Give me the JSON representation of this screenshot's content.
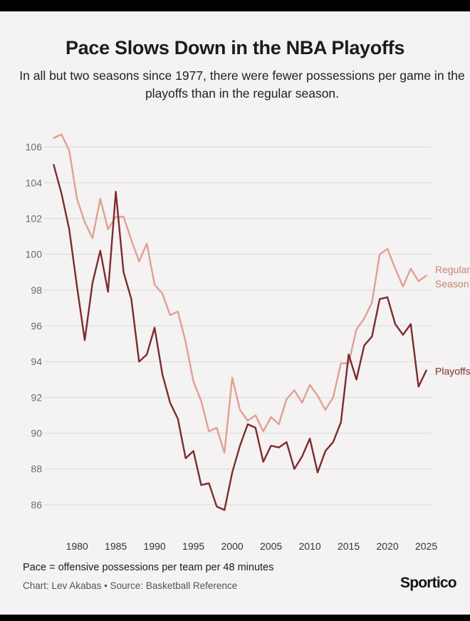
{
  "title": "Pace Slows Down in the NBA Playoffs",
  "subtitle": "In all but two seasons since 1977, there were fewer possessions per game in the playoffs than in the regular season.",
  "note": "Pace = offensive possessions per team per 48 minutes",
  "credit": "Chart: Lev Akabas • Source: Basketball Reference",
  "brand": "Sportico",
  "colors": {
    "regular": "#e0a093",
    "playoffs": "#7d2b2e",
    "regular_label": "#c98376",
    "grid": "#dcd9d9"
  },
  "chart_data": {
    "type": "line",
    "title": "Pace Slows Down in the NBA Playoffs",
    "xlabel": "",
    "ylabel": "",
    "x": [
      1977,
      1978,
      1979,
      1980,
      1981,
      1982,
      1983,
      1984,
      1985,
      1986,
      1987,
      1988,
      1989,
      1990,
      1991,
      1992,
      1993,
      1994,
      1995,
      1996,
      1997,
      1998,
      1999,
      2000,
      2001,
      2002,
      2003,
      2004,
      2005,
      2006,
      2007,
      2008,
      2009,
      2010,
      2011,
      2012,
      2013,
      2014,
      2015,
      2016,
      2017,
      2018,
      2019,
      2020,
      2021,
      2022,
      2023,
      2024,
      2025
    ],
    "xticks": [
      1980,
      1985,
      1990,
      1995,
      2000,
      2005,
      2010,
      2015,
      2020,
      2025
    ],
    "yticks": [
      86,
      88,
      90,
      92,
      94,
      96,
      98,
      100,
      102,
      104,
      106
    ],
    "xlim": [
      1976.5,
      2025.5
    ],
    "ylim": [
      85,
      107.2
    ],
    "grid": true,
    "series": [
      {
        "name": "Regular Season",
        "label_lines": [
          "Regular",
          "Season"
        ],
        "values": [
          106.5,
          106.7,
          105.8,
          103.1,
          101.8,
          100.9,
          103.1,
          101.4,
          102.1,
          102.1,
          100.8,
          99.6,
          100.6,
          98.3,
          97.8,
          96.6,
          96.8,
          95.1,
          92.9,
          91.8,
          90.1,
          90.3,
          88.9,
          93.1,
          91.3,
          90.7,
          91.0,
          90.1,
          90.9,
          90.5,
          91.9,
          92.4,
          91.7,
          92.7,
          92.1,
          91.3,
          92.0,
          93.9,
          93.9,
          95.8,
          96.4,
          97.3,
          100.0,
          100.3,
          99.2,
          98.2,
          99.2,
          98.5,
          98.8
        ]
      },
      {
        "name": "Playoffs",
        "label_lines": [
          "Playoffs"
        ],
        "values": [
          105.0,
          103.4,
          101.4,
          98.2,
          95.2,
          98.4,
          100.2,
          97.9,
          103.5,
          99.0,
          97.5,
          94.0,
          94.4,
          95.9,
          93.3,
          91.7,
          90.8,
          88.6,
          89.0,
          87.1,
          87.2,
          85.9,
          85.7,
          87.8,
          89.3,
          90.5,
          90.3,
          88.4,
          89.3,
          89.2,
          89.5,
          88.0,
          88.7,
          89.7,
          87.8,
          89.0,
          89.5,
          90.6,
          94.4,
          93.0,
          94.9,
          95.4,
          97.5,
          97.6,
          96.1,
          95.5,
          96.1,
          92.6,
          93.5
        ]
      }
    ]
  }
}
